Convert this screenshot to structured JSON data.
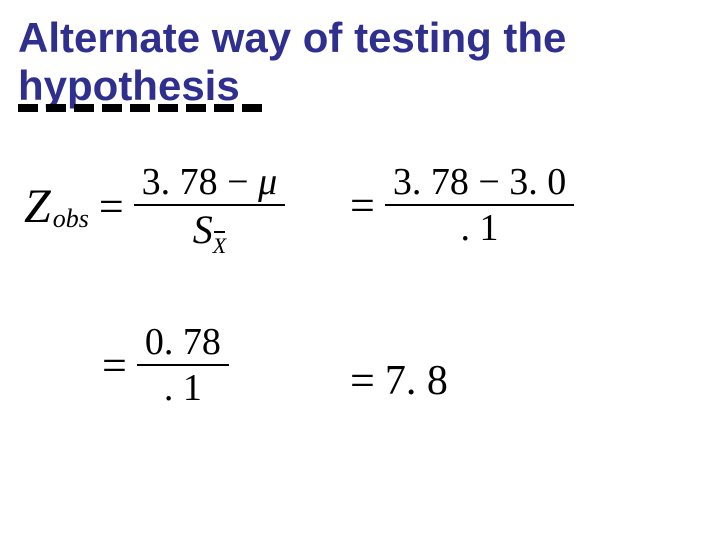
{
  "title": {
    "line1": "Alternate way of testing the",
    "line2": "hypothesis",
    "color": "#2f2f8f",
    "fontsize": 42
  },
  "equation": {
    "variable": "Z",
    "subscript": "obs",
    "step1": {
      "numerator_left": "3. 78",
      "numerator_op": "−",
      "numerator_right": "μ",
      "denominator_sym": "S",
      "denominator_sub": "X",
      "denominator_overbar": true
    },
    "step2": {
      "numerator": "3. 78 − 3. 0",
      "denominator": ". 1"
    },
    "step3": {
      "numerator": "0. 78",
      "denominator": ". 1"
    },
    "result": "7. 8"
  },
  "style": {
    "background_color": "#ffffff",
    "math_font": "Times New Roman",
    "title_font": "Arial",
    "underline_color": "#000000",
    "underline_dash": [
      20,
      8
    ]
  }
}
